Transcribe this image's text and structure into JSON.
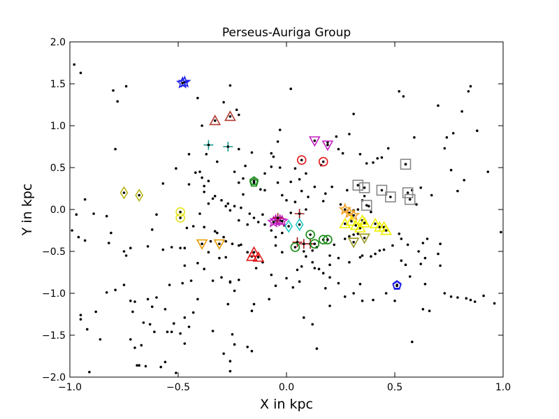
{
  "chart_data": {
    "type": "scatter",
    "title": "Perseus-Auriga Group",
    "xlabel": "X in kpc",
    "ylabel": "Y in kpc",
    "xlim": [
      -1.0,
      1.0
    ],
    "ylim": [
      -2.0,
      2.0
    ],
    "xticks": [
      -1.0,
      -0.5,
      0.0,
      0.5,
      1.0
    ],
    "yticks": [
      -2.0,
      -1.5,
      -1.0,
      -0.5,
      0.0,
      0.5,
      1.0,
      1.5,
      2.0
    ],
    "xtick_labels": [
      "−1.0",
      "−0.5",
      "0.0",
      "0.5",
      "1.0"
    ],
    "ytick_labels": [
      "−2.0",
      "−1.5",
      "−1.0",
      "−0.5",
      "0.0",
      "0.5",
      "1.0",
      "1.5",
      "2.0"
    ],
    "grid": false,
    "background_points": [
      [
        -0.98,
        1.73
      ],
      [
        -0.95,
        1.63
      ],
      [
        -0.8,
        1.42
      ],
      [
        -0.78,
        1.29
      ],
      [
        -0.79,
        0.72
      ],
      [
        -0.74,
        1.47
      ],
      [
        -0.41,
        1.33
      ],
      [
        -0.39,
        1.0
      ],
      [
        -0.29,
        1.28
      ],
      [
        -0.26,
        1.48
      ],
      [
        -0.23,
        1.19
      ],
      [
        -0.22,
        1.13
      ],
      [
        -0.22,
        0.72
      ],
      [
        -0.32,
        0.57
      ],
      [
        -0.37,
        0.66
      ],
      [
        -0.45,
        0.66
      ],
      [
        -0.51,
        0.49
      ],
      [
        -0.57,
        0.31
      ],
      [
        -0.6,
        -0.06
      ],
      [
        -0.62,
        -0.24
      ],
      [
        -0.64,
        -0.44
      ],
      [
        -0.72,
        -0.46
      ],
      [
        -0.75,
        -0.5
      ],
      [
        -0.74,
        -0.55
      ],
      [
        -0.82,
        -0.4
      ],
      [
        -0.81,
        -0.28
      ],
      [
        -0.83,
        -0.08
      ],
      [
        -0.89,
        -0.05
      ],
      [
        -0.93,
        0.12
      ],
      [
        -0.97,
        -0.06
      ],
      [
        -0.99,
        -0.25
      ],
      [
        -0.96,
        -0.33
      ],
      [
        -0.93,
        -0.37
      ],
      [
        -0.95,
        -1.26
      ],
      [
        -0.95,
        -1.31
      ],
      [
        -0.92,
        -1.43
      ],
      [
        -0.91,
        -1.94
      ],
      [
        -0.88,
        -1.22
      ],
      [
        -0.83,
        -0.99
      ],
      [
        -0.79,
        -0.96
      ],
      [
        -0.75,
        -0.9
      ],
      [
        -0.72,
        -1.09
      ],
      [
        -0.71,
        -1.22
      ],
      [
        -0.7,
        -1.1
      ],
      [
        -0.72,
        -1.55
      ],
      [
        -0.7,
        -1.65
      ],
      [
        -0.69,
        -1.86
      ],
      [
        -0.68,
        -1.86
      ],
      [
        -0.65,
        -1.87
      ],
      [
        -0.66,
        -1.35
      ],
      [
        -0.64,
        -1.07
      ],
      [
        -0.62,
        -1.16
      ],
      [
        -0.63,
        -1.37
      ],
      [
        -0.61,
        -1.46
      ],
      [
        -0.58,
        -1.88
      ],
      [
        -0.56,
        -1.82
      ],
      [
        -0.55,
        -1.46
      ],
      [
        -0.53,
        -1.46
      ],
      [
        -0.52,
        -1.36
      ],
      [
        -0.51,
        -1.95
      ],
      [
        -0.49,
        -1.48
      ],
      [
        -0.47,
        -1.29
      ],
      [
        -0.47,
        -1.6
      ],
      [
        -0.45,
        -1.4
      ],
      [
        -0.43,
        -1.23
      ],
      [
        -0.41,
        -1.07
      ],
      [
        -0.48,
        -0.88
      ],
      [
        -0.44,
        -0.85
      ],
      [
        -0.54,
        -0.9
      ],
      [
        -0.49,
        -0.46
      ],
      [
        -0.47,
        -0.46
      ],
      [
        -0.38,
        -0.71
      ],
      [
        -0.36,
        -0.51
      ],
      [
        -0.35,
        -0.38
      ],
      [
        -0.34,
        -0.85
      ],
      [
        -0.31,
        -0.58
      ],
      [
        -0.3,
        -0.81
      ],
      [
        -0.28,
        -0.57
      ],
      [
        -0.26,
        -0.86
      ],
      [
        -0.26,
        -0.87
      ],
      [
        -0.24,
        -0.97
      ],
      [
        -0.22,
        -0.84
      ],
      [
        -0.27,
        -1.13
      ],
      [
        -0.25,
        -1.49
      ],
      [
        -0.24,
        -1.61
      ],
      [
        -0.26,
        -1.81
      ],
      [
        -0.26,
        -1.93
      ],
      [
        -0.18,
        -1.64
      ],
      [
        -0.16,
        -1.21
      ],
      [
        -0.15,
        -1.13
      ],
      [
        -0.08,
        -1.07
      ],
      [
        -0.05,
        -0.91
      ],
      [
        -0.07,
        -0.78
      ],
      [
        -0.11,
        -0.63
      ],
      [
        -0.14,
        -0.7
      ],
      [
        -0.18,
        -0.51
      ],
      [
        -0.21,
        -0.42
      ],
      [
        -0.22,
        -0.43
      ],
      [
        -0.25,
        -0.41
      ],
      [
        -0.28,
        -0.38
      ],
      [
        -0.29,
        -0.33
      ],
      [
        -0.32,
        -0.28
      ],
      [
        -0.33,
        -0.26
      ],
      [
        -0.38,
        -0.21
      ],
      [
        -0.43,
        -0.2
      ],
      [
        -0.46,
        -0.22
      ],
      [
        -0.4,
        -0.05
      ],
      [
        -0.36,
        0.07
      ],
      [
        -0.33,
        0.16
      ],
      [
        -0.3,
        0.11
      ],
      [
        -0.27,
        0.07
      ],
      [
        -0.28,
        0.04
      ],
      [
        -0.26,
        -0.01
      ],
      [
        -0.24,
        0.04
      ],
      [
        -0.21,
        0.02
      ],
      [
        -0.22,
        -0.13
      ],
      [
        -0.18,
        -0.18
      ],
      [
        -0.15,
        -0.1
      ],
      [
        -0.13,
        -0.15
      ],
      [
        -0.1,
        -0.18
      ],
      [
        -0.07,
        -0.25
      ],
      [
        -0.05,
        -0.33
      ],
      [
        -0.02,
        -0.28
      ],
      [
        -0.01,
        -0.19
      ],
      [
        0.02,
        -0.04
      ],
      [
        0.0,
        0.11
      ],
      [
        0.04,
        0.09
      ],
      [
        0.07,
        0.22
      ],
      [
        0.02,
        0.33
      ],
      [
        0.04,
        0.49
      ],
      [
        -0.03,
        0.5
      ],
      [
        -0.06,
        0.63
      ],
      [
        -0.07,
        0.67
      ],
      [
        -0.04,
        0.81
      ],
      [
        -0.03,
        0.95
      ],
      [
        0.02,
        1.44
      ],
      [
        -0.1,
        0.43
      ],
      [
        -0.1,
        0.23
      ],
      [
        -0.12,
        0.24
      ],
      [
        -0.15,
        0.32
      ],
      [
        -0.16,
        0.68
      ],
      [
        -0.19,
        0.52
      ],
      [
        -0.2,
        0.37
      ],
      [
        -0.24,
        0.45
      ],
      [
        -0.36,
        0.34
      ],
      [
        -0.39,
        0.38
      ],
      [
        -0.4,
        0.45
      ],
      [
        -0.38,
        0.28
      ],
      [
        -0.42,
        0.44
      ],
      [
        -0.45,
        0.3
      ],
      [
        -0.38,
        0.21
      ],
      [
        -0.34,
        0.13
      ],
      [
        0.09,
        0.0
      ],
      [
        0.1,
        0.15
      ],
      [
        0.13,
        0.27
      ],
      [
        0.16,
        0.53
      ],
      [
        0.19,
        0.8
      ],
      [
        0.23,
        0.87
      ],
      [
        0.24,
        0.72
      ],
      [
        0.26,
        0.67
      ],
      [
        0.29,
        0.9
      ],
      [
        0.31,
        1.14
      ],
      [
        0.34,
        0.66
      ],
      [
        0.37,
        0.55
      ],
      [
        0.4,
        0.56
      ],
      [
        0.42,
        0.61
      ],
      [
        0.44,
        0.62
      ],
      [
        0.47,
        0.73
      ],
      [
        0.52,
        1.41
      ],
      [
        0.54,
        1.35
      ],
      [
        0.59,
        0.86
      ],
      [
        0.58,
        0.23
      ],
      [
        0.6,
        0.06
      ],
      [
        0.62,
        0.26
      ],
      [
        0.67,
        0.17
      ],
      [
        0.7,
        1.24
      ],
      [
        0.73,
        0.73
      ],
      [
        0.74,
        0.86
      ],
      [
        0.76,
        0.47
      ],
      [
        0.77,
        0.91
      ],
      [
        0.79,
        0.22
      ],
      [
        0.81,
        1.17
      ],
      [
        0.82,
        0.35
      ],
      [
        0.84,
        1.41
      ],
      [
        0.85,
        1.47
      ],
      [
        0.88,
        0.94
      ],
      [
        0.93,
        0.45
      ],
      [
        0.99,
        -0.27
      ],
      [
        0.96,
        -1.12
      ],
      [
        0.91,
        -1.03
      ],
      [
        0.87,
        -1.1
      ],
      [
        0.85,
        -1.08
      ],
      [
        0.83,
        -1.06
      ],
      [
        0.79,
        -1.05
      ],
      [
        0.76,
        -1.04
      ],
      [
        0.73,
        -1.0
      ],
      [
        0.71,
        -0.67
      ],
      [
        0.66,
        -1.21
      ],
      [
        0.63,
        -1.19
      ],
      [
        0.64,
        -0.89
      ],
      [
        0.62,
        -0.65
      ],
      [
        0.61,
        -0.5
      ],
      [
        0.57,
        -0.8
      ],
      [
        0.55,
        -0.66
      ],
      [
        0.53,
        -0.61
      ],
      [
        0.52,
        -0.29
      ],
      [
        0.53,
        -0.35
      ],
      [
        0.58,
        -1.58
      ],
      [
        0.63,
        -0.4
      ],
      [
        0.65,
        -0.35
      ],
      [
        0.7,
        -0.53
      ],
      [
        0.71,
        -0.41
      ],
      [
        0.64,
        -0.58
      ],
      [
        0.56,
        -0.42
      ],
      [
        0.49,
        -0.43
      ],
      [
        0.45,
        -0.48
      ],
      [
        0.43,
        -0.49
      ],
      [
        0.41,
        -0.53
      ],
      [
        0.39,
        -0.56
      ],
      [
        0.35,
        -0.55
      ],
      [
        0.34,
        -0.57
      ],
      [
        0.34,
        -0.89
      ],
      [
        0.35,
        -1.09
      ],
      [
        0.31,
        -1.0
      ],
      [
        0.24,
        -0.88
      ],
      [
        0.2,
        -0.81
      ],
      [
        0.17,
        -0.76
      ],
      [
        0.15,
        -0.71
      ],
      [
        0.13,
        -0.7
      ],
      [
        0.12,
        -0.63
      ],
      [
        0.09,
        -0.56
      ],
      [
        0.07,
        -0.68
      ],
      [
        0.05,
        -0.72
      ],
      [
        0.06,
        -0.86
      ],
      [
        0.03,
        -0.93
      ],
      [
        0.0,
        -0.82
      ],
      [
        -0.02,
        -0.51
      ],
      [
        -0.05,
        -0.43
      ],
      [
        0.14,
        -1.66
      ],
      [
        0.18,
        -0.94
      ],
      [
        0.2,
        -0.66
      ],
      [
        0.24,
        -0.58
      ],
      [
        0.29,
        -0.63
      ],
      [
        0.33,
        -0.29
      ],
      [
        0.31,
        -0.3
      ],
      [
        0.29,
        -0.32
      ],
      [
        0.27,
        -0.35
      ],
      [
        0.22,
        -0.42
      ],
      [
        0.2,
        -0.55
      ],
      [
        0.14,
        -0.45
      ],
      [
        0.12,
        -0.49
      ],
      [
        0.08,
        -0.5
      ],
      [
        0.55,
        0.54
      ],
      [
        0.36,
        0.16
      ],
      [
        0.35,
        0.11
      ],
      [
        0.33,
        0.0
      ],
      [
        0.38,
        0.04
      ],
      [
        0.39,
        -0.03
      ],
      [
        0.31,
        -0.01
      ],
      [
        0.17,
        0.1
      ],
      [
        0.18,
        0.19
      ],
      [
        0.21,
        0.27
      ],
      [
        0.28,
        0.23
      ],
      [
        0.25,
        0.06
      ],
      [
        -0.22,
        0.32
      ],
      [
        -0.2,
        0.18
      ],
      [
        -0.17,
        -0.05
      ],
      [
        -0.11,
        -0.06
      ],
      [
        -0.02,
        0.17
      ],
      [
        -0.04,
        0.32
      ],
      [
        -0.07,
        0.51
      ],
      [
        0.06,
        0.36
      ],
      [
        0.09,
        0.43
      ],
      [
        -0.6,
        -1.05
      ],
      [
        -0.56,
        -1.19
      ],
      [
        -0.67,
        -1.62
      ],
      [
        -0.86,
        -1.55
      ],
      [
        -0.57,
        -0.48
      ],
      [
        -0.53,
        -0.45
      ],
      [
        -0.47,
        -0.67
      ],
      [
        -0.41,
        -0.64
      ],
      [
        -0.29,
        -1.72
      ],
      [
        -0.34,
        -1.45
      ],
      [
        -0.16,
        -1.69
      ],
      [
        0.08,
        -1.29
      ],
      [
        0.12,
        -1.37
      ],
      [
        0.2,
        -1.15
      ],
      [
        0.27,
        -1.04
      ],
      [
        0.4,
        -1.08
      ],
      [
        0.46,
        -1.0
      ],
      [
        0.5,
        -1.09
      ]
    ],
    "groups": [
      {
        "marker": "star",
        "color": "#1f1fe6",
        "points": [
          [
            -0.47,
            1.52
          ],
          [
            -0.48,
            1.51
          ]
        ]
      },
      {
        "marker": "triangle-up",
        "color": "#b03a2e",
        "points": [
          [
            -0.33,
            1.06
          ],
          [
            -0.26,
            1.11
          ]
        ]
      },
      {
        "marker": "plus",
        "color": "#119988",
        "points": [
          [
            -0.36,
            0.77
          ],
          [
            -0.27,
            0.75
          ]
        ]
      },
      {
        "marker": "pentagon",
        "color": "#118811",
        "points": [
          [
            -0.15,
            0.32
          ],
          [
            -0.15,
            0.34
          ]
        ]
      },
      {
        "marker": "diamond",
        "color": "#b5b51a",
        "points": [
          [
            -0.75,
            0.2
          ],
          [
            -0.68,
            0.17
          ]
        ]
      },
      {
        "marker": "circle",
        "color": "#e3e321",
        "points": [
          [
            -0.49,
            -0.03
          ],
          [
            -0.49,
            -0.1
          ]
        ]
      },
      {
        "marker": "triangle-down",
        "color": "#e69a00",
        "points": [
          [
            -0.39,
            -0.41
          ],
          [
            -0.31,
            -0.41
          ]
        ]
      },
      {
        "marker": "triangle-up",
        "color": "#e01a1a",
        "points": [
          [
            -0.16,
            -0.56
          ],
          [
            -0.15,
            -0.51
          ],
          [
            -0.13,
            -0.57
          ]
        ]
      },
      {
        "marker": "star",
        "color": "#c21fc2",
        "points": [
          [
            -0.05,
            -0.13
          ],
          [
            -0.03,
            -0.13
          ],
          [
            -0.02,
            -0.14
          ],
          [
            -0.06,
            -0.15
          ]
        ]
      },
      {
        "marker": "plus",
        "color": "#a01818",
        "points": [
          [
            -0.04,
            -0.1
          ],
          [
            0.06,
            -0.05
          ],
          [
            0.05,
            -0.39
          ],
          [
            0.08,
            -0.41
          ],
          [
            0.11,
            -0.41
          ]
        ]
      },
      {
        "marker": "diamond",
        "color": "#1fc7c7",
        "points": [
          [
            0.01,
            -0.2
          ],
          [
            0.06,
            -0.18
          ]
        ]
      },
      {
        "marker": "circle",
        "color": "#118811",
        "points": [
          [
            0.04,
            -0.45
          ],
          [
            0.11,
            -0.3
          ],
          [
            0.13,
            -0.41
          ],
          [
            0.17,
            -0.36
          ],
          [
            0.19,
            -0.36
          ]
        ]
      },
      {
        "marker": "circle",
        "color": "#e01a1a",
        "points": [
          [
            0.07,
            0.59
          ],
          [
            0.17,
            0.57
          ]
        ]
      },
      {
        "marker": "triangle-down",
        "color": "#c21fc2",
        "points": [
          [
            0.13,
            0.82
          ],
          [
            0.19,
            0.77
          ]
        ]
      },
      {
        "marker": "square",
        "color": "#888888",
        "points": [
          [
            0.33,
            0.29
          ],
          [
            0.36,
            0.26
          ],
          [
            0.37,
            0.05
          ],
          [
            0.44,
            0.23
          ],
          [
            0.48,
            0.15
          ],
          [
            0.55,
            0.54
          ],
          [
            0.56,
            0.2
          ],
          [
            0.57,
            0.12
          ]
        ]
      },
      {
        "marker": "star",
        "color": "#f0a020",
        "points": [
          [
            0.27,
            0.0
          ],
          [
            0.29,
            -0.04
          ],
          [
            0.31,
            -0.07
          ]
        ]
      },
      {
        "marker": "triangle-up",
        "color": "#f0f000",
        "points": [
          [
            0.27,
            -0.17
          ],
          [
            0.3,
            -0.14
          ],
          [
            0.32,
            -0.19
          ],
          [
            0.34,
            -0.22
          ],
          [
            0.35,
            -0.13
          ],
          [
            0.36,
            -0.16
          ],
          [
            0.41,
            -0.17
          ],
          [
            0.43,
            -0.21
          ],
          [
            0.45,
            -0.21
          ],
          [
            0.46,
            -0.25
          ]
        ]
      },
      {
        "marker": "triangle-down",
        "color": "#999922",
        "points": [
          [
            0.31,
            -0.39
          ],
          [
            0.36,
            -0.34
          ]
        ]
      },
      {
        "marker": "pentagon",
        "color": "#1f1fe6",
        "points": [
          [
            0.51,
            -0.9
          ],
          [
            0.51,
            -0.91
          ]
        ]
      }
    ]
  }
}
